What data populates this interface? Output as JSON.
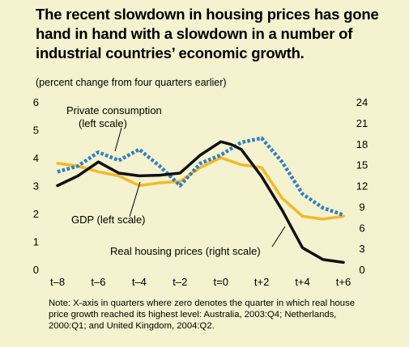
{
  "title": "The recent slowdown in housing prices has gone hand in hand with a slowdown in a number of industrial countries’ economic growth.",
  "subtitle": "(percent change from four quarters earlier)",
  "note": "Note: X-axis in quarters where zero denotes the quarter in which real house price growth reached its highest level: Australia, 2003:Q4; Netherlands, 2000:Q1; and United Kingdom, 2004:Q2.",
  "colors": {
    "background": "#f4f2cf",
    "private_consumption": "#2e7fc3",
    "gdp": "#f5b82a",
    "real_housing_prices": "#111111",
    "leader": "#000000"
  },
  "chart_data": {
    "type": "line",
    "x": [
      -8,
      -7,
      -6,
      -5,
      -4,
      -3,
      -2,
      -1,
      0,
      0.5,
      1,
      2,
      3,
      4,
      5,
      6
    ],
    "x_tick_labels": [
      "t–8",
      "t–6",
      "t–4",
      "t–2",
      "t=0",
      "t+2",
      "t+4",
      "t+6"
    ],
    "x_tick_values": [
      -8,
      -6,
      -4,
      -2,
      0,
      2,
      4,
      6
    ],
    "left_axis": {
      "ylim": [
        0,
        6
      ],
      "ticks": [
        "0",
        "1",
        "2",
        "3",
        "4",
        "5",
        "6"
      ]
    },
    "right_axis": {
      "ylim": [
        0,
        24
      ],
      "ticks": [
        "0",
        "3",
        "6",
        "9",
        "12",
        "15",
        "18",
        "21",
        "24"
      ]
    },
    "grid": false,
    "series": [
      {
        "name": "Private consumption (left scale)",
        "axis": "left",
        "style": "dotted",
        "x": [
          -8,
          -7,
          -6,
          -5,
          -4,
          -3,
          -2,
          -1,
          0,
          1,
          2,
          3,
          4,
          5,
          6
        ],
        "values": [
          3.5,
          3.7,
          4.2,
          3.9,
          4.3,
          3.7,
          3.0,
          3.8,
          4.1,
          4.55,
          4.7,
          3.85,
          2.7,
          2.2,
          1.95
        ]
      },
      {
        "name": "GDP (left scale)",
        "axis": "left",
        "style": "solid",
        "x": [
          -8,
          -7,
          -6,
          -5,
          -4,
          -3,
          -2,
          -1,
          0,
          1,
          2,
          3,
          4,
          5,
          6
        ],
        "values": [
          3.8,
          3.7,
          3.5,
          3.35,
          3.0,
          3.1,
          3.15,
          3.65,
          4.0,
          3.75,
          3.65,
          2.55,
          1.9,
          1.8,
          1.9
        ]
      },
      {
        "name": "Real housing prices (right scale)",
        "axis": "right",
        "style": "solid",
        "x": [
          -8,
          -7,
          -6,
          -5,
          -4,
          -3,
          -2,
          -1,
          0,
          0.5,
          1,
          2,
          3,
          4,
          5,
          6
        ],
        "values": [
          12.0,
          13.4,
          15.4,
          13.8,
          13.4,
          13.5,
          13.8,
          16.4,
          18.3,
          17.9,
          17.2,
          13.3,
          8.5,
          3.1,
          1.4,
          1.0
        ]
      }
    ],
    "annotations": [
      {
        "text_lines": [
          "Private consumption",
          "(left scale)"
        ],
        "series": "Private consumption (left scale)"
      },
      {
        "text_lines": [
          "GDP (left scale)"
        ],
        "series": "GDP (left scale)"
      },
      {
        "text_lines": [
          "Real housing prices (right scale)"
        ],
        "series": "Real housing prices (right scale)"
      }
    ]
  }
}
